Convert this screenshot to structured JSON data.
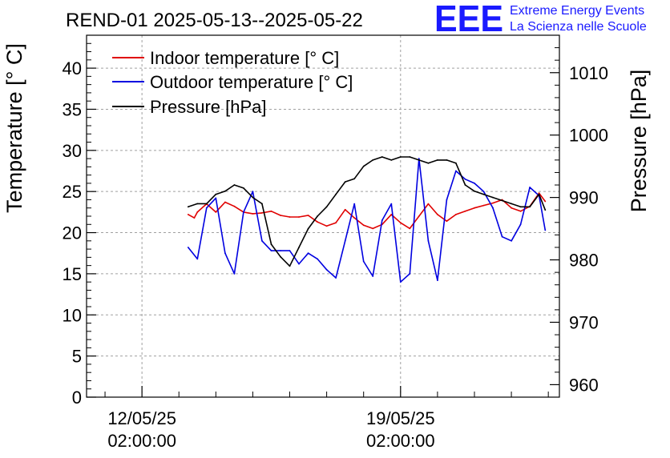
{
  "page": {
    "title": "REND-01 2025-05-13--2025-05-22",
    "logo_text": "EEE",
    "logo_line1": "Extreme Energy Events",
    "logo_line2": "La Scienza nelle Scuole",
    "colors": {
      "logo": "#1a1aff",
      "indoor": "#e00000",
      "outdoor": "#0000e0",
      "pressure": "#000000",
      "grid": "#a0a0a0"
    }
  },
  "chart_data": {
    "type": "line",
    "title": "REND-01 2025-05-13--2025-05-22",
    "ylabel": "Temperature [° C]",
    "y2label": "Pressure [hPa]",
    "xlabel": "",
    "ylim": [
      0,
      44
    ],
    "y2lim": [
      958,
      1016
    ],
    "xlim_days": [
      -1.5,
      11.3
    ],
    "x_ticks": [
      {
        "date": "12/05/25",
        "time": "02:00:00"
      },
      {
        "date": "19/05/25",
        "time": "02:00:00"
      }
    ],
    "y_ticks": [
      "0",
      "5",
      "10",
      "15",
      "20",
      "25",
      "30",
      "35",
      "40"
    ],
    "y2_ticks": [
      "960",
      "970",
      "980",
      "990",
      "1000",
      "1010"
    ],
    "grid": true,
    "legend_position": "top-left",
    "series": [
      {
        "name": "Indoor temperature [° C]",
        "axis": "left",
        "color": "#e00000",
        "x": [
          "2025-05-13 08:00",
          "2025-05-13 12:00",
          "2025-05-13 14:00",
          "2025-05-13 20:00",
          "2025-05-14 02:00",
          "2025-05-14 08:00",
          "2025-05-14 14:00",
          "2025-05-14 20:00",
          "2025-05-15 02:00",
          "2025-05-15 08:00",
          "2025-05-15 14:00",
          "2025-05-15 20:00",
          "2025-05-16 02:00",
          "2025-05-16 08:00",
          "2025-05-16 14:00",
          "2025-05-16 20:00",
          "2025-05-17 02:00",
          "2025-05-17 08:00",
          "2025-05-17 14:00",
          "2025-05-17 20:00",
          "2025-05-18 02:00",
          "2025-05-18 08:00",
          "2025-05-18 14:00",
          "2025-05-18 20:00",
          "2025-05-19 02:00",
          "2025-05-19 08:00",
          "2025-05-19 14:00",
          "2025-05-19 20:00",
          "2025-05-20 02:00",
          "2025-05-20 08:00",
          "2025-05-20 14:00",
          "2025-05-20 20:00",
          "2025-05-21 02:00",
          "2025-05-21 08:00",
          "2025-05-21 14:00",
          "2025-05-21 20:00",
          "2025-05-22 02:00",
          "2025-05-22 08:00",
          "2025-05-22 14:00",
          "2025-05-22 20:00",
          "2025-05-23 00:00"
        ],
        "values": [
          22.2,
          21.8,
          22.5,
          23.5,
          22.5,
          23.7,
          23.2,
          22.5,
          22.3,
          22.4,
          22.6,
          22.1,
          21.9,
          21.9,
          22.1,
          21.3,
          20.8,
          21.2,
          22.8,
          21.8,
          20.9,
          20.5,
          21.0,
          22.2,
          21.2,
          20.5,
          22.0,
          23.5,
          22.2,
          21.4,
          22.2,
          22.6,
          23.0,
          23.3,
          23.6,
          24.0,
          23.0,
          22.6,
          23.2,
          24.8,
          23.8
        ]
      },
      {
        "name": "Outdoor temperature [° C]",
        "axis": "left",
        "color": "#0000e0",
        "x": [
          "2025-05-13 08:00",
          "2025-05-13 14:00",
          "2025-05-13 20:00",
          "2025-05-14 02:00",
          "2025-05-14 08:00",
          "2025-05-14 14:00",
          "2025-05-14 20:00",
          "2025-05-15 02:00",
          "2025-05-15 08:00",
          "2025-05-15 14:00",
          "2025-05-15 20:00",
          "2025-05-16 02:00",
          "2025-05-16 08:00",
          "2025-05-16 14:00",
          "2025-05-16 20:00",
          "2025-05-17 02:00",
          "2025-05-17 08:00",
          "2025-05-17 14:00",
          "2025-05-17 20:00",
          "2025-05-18 02:00",
          "2025-05-18 08:00",
          "2025-05-18 14:00",
          "2025-05-18 20:00",
          "2025-05-19 02:00",
          "2025-05-19 08:00",
          "2025-05-19 14:00",
          "2025-05-19 20:00",
          "2025-05-20 02:00",
          "2025-05-20 08:00",
          "2025-05-20 14:00",
          "2025-05-20 20:00",
          "2025-05-21 02:00",
          "2025-05-21 08:00",
          "2025-05-21 14:00",
          "2025-05-21 20:00",
          "2025-05-22 02:00",
          "2025-05-22 08:00",
          "2025-05-22 14:00",
          "2025-05-22 20:00",
          "2025-05-23 00:00"
        ],
        "values": [
          18.2,
          16.8,
          23.0,
          24.2,
          17.5,
          15.0,
          22.5,
          25.0,
          19.0,
          17.8,
          17.8,
          17.8,
          16.2,
          17.5,
          16.8,
          15.5,
          14.5,
          19.0,
          23.5,
          16.5,
          14.7,
          21.5,
          23.5,
          14.0,
          15.0,
          29.0,
          19.0,
          14.2,
          24.0,
          27.5,
          26.5,
          26.0,
          25.0,
          23.0,
          19.5,
          19.0,
          21.0,
          25.5,
          24.5,
          20.3
        ]
      },
      {
        "name": "Pressure [hPa]",
        "axis": "right",
        "color": "#000000",
        "x": [
          "2025-05-13 08:00",
          "2025-05-13 14:00",
          "2025-05-13 20:00",
          "2025-05-14 02:00",
          "2025-05-14 08:00",
          "2025-05-14 14:00",
          "2025-05-14 20:00",
          "2025-05-15 02:00",
          "2025-05-15 08:00",
          "2025-05-15 14:00",
          "2025-05-15 20:00",
          "2025-05-16 02:00",
          "2025-05-16 08:00",
          "2025-05-16 14:00",
          "2025-05-16 20:00",
          "2025-05-17 02:00",
          "2025-05-17 08:00",
          "2025-05-17 14:00",
          "2025-05-17 20:00",
          "2025-05-18 02:00",
          "2025-05-18 08:00",
          "2025-05-18 14:00",
          "2025-05-18 20:00",
          "2025-05-19 02:00",
          "2025-05-19 08:00",
          "2025-05-19 14:00",
          "2025-05-19 20:00",
          "2025-05-20 02:00",
          "2025-05-20 08:00",
          "2025-05-20 14:00",
          "2025-05-20 20:00",
          "2025-05-21 02:00",
          "2025-05-21 08:00",
          "2025-05-21 14:00",
          "2025-05-21 20:00",
          "2025-05-22 02:00",
          "2025-05-22 08:00",
          "2025-05-22 14:00",
          "2025-05-22 20:00",
          "2025-05-23 00:00"
        ],
        "values": [
          988.5,
          989.0,
          989.0,
          990.5,
          991.0,
          992.0,
          991.5,
          990.0,
          989.0,
          982.5,
          980.5,
          979.0,
          982.0,
          985.0,
          987.0,
          988.5,
          990.5,
          992.5,
          993.0,
          995.0,
          996.0,
          996.5,
          996.0,
          996.5,
          996.5,
          996.0,
          995.5,
          996.0,
          996.0,
          995.5,
          992.0,
          991.0,
          990.5,
          990.0,
          989.5,
          989.0,
          988.5,
          988.5,
          990.5,
          988.0
        ]
      }
    ]
  }
}
